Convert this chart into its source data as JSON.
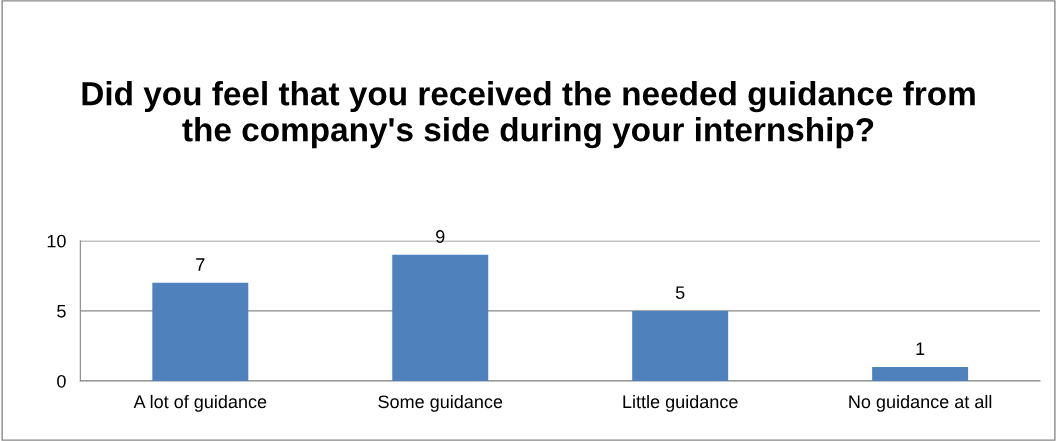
{
  "chart_data": {
    "type": "bar",
    "title": "Did you feel that you received the needed guidance from the company's side during your internship?",
    "categories": [
      "A lot of guidance",
      "Some guidance",
      "Little guidance",
      "No guidance at all"
    ],
    "values": [
      7,
      9,
      5,
      1
    ],
    "color": "#4f81bd",
    "ylim": [
      0,
      10
    ],
    "yticks": [
      0,
      5,
      10
    ],
    "grid": "y",
    "data_labels": true
  }
}
